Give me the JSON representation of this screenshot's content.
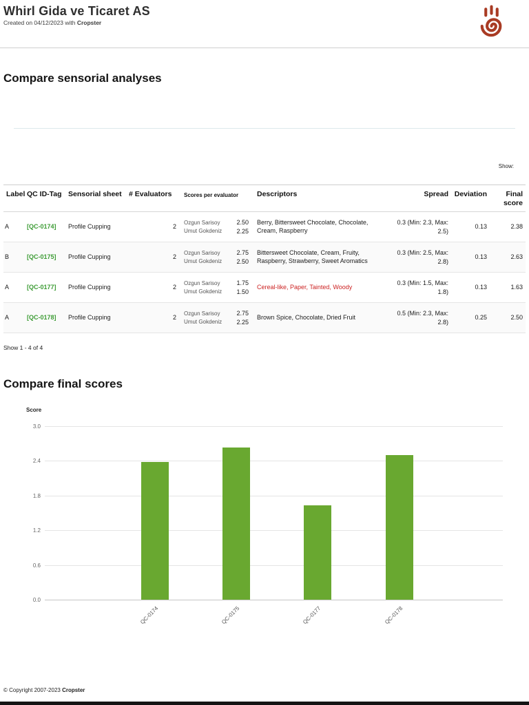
{
  "header": {
    "title": "Whirl Gida ve Ticaret AS",
    "created_prefix": "Created on 04/12/2023 with ",
    "created_brand": "Cropster",
    "logo_icon": "cropster-hand-spiral-logo",
    "logo_color": "#a93b24"
  },
  "sections": {
    "compare_analyses_title": "Compare sensorial analyses",
    "compare_scores_title": "Compare final scores",
    "show_label": "Show:"
  },
  "table": {
    "headers": {
      "label": "Label",
      "qc_tag": "QC ID-Tag",
      "sheet": "Sensorial sheet",
      "evaluators": "# Evaluators",
      "scores": "Scores per evaluator",
      "descriptors": "Descriptors",
      "spread": "Spread",
      "deviation": "Deviation",
      "final": "Final score"
    },
    "rows": [
      {
        "label": "A",
        "qc_tag": "[QC-0174]",
        "sheet": "Profile Cupping",
        "evaluators_count": "2",
        "evaluators": [
          "Ozgun Sarisoy",
          "Umut Gokdeniz"
        ],
        "scores": [
          "2.50",
          "2.25"
        ],
        "descriptors": "Berry, Bittersweet Chocolate, Chocolate, Cream, Raspberry",
        "spread": "0.3 (Min: 2.3, Max: 2.5)",
        "deviation": "0.13",
        "final": "2.38"
      },
      {
        "label": "B",
        "qc_tag": "[QC-0175]",
        "sheet": "Profile Cupping",
        "evaluators_count": "2",
        "evaluators": [
          "Ozgun Sarisoy",
          "Umut Gokdeniz"
        ],
        "scores": [
          "2.75",
          "2.50"
        ],
        "descriptors": "Bittersweet Chocolate, Cream, Fruity, Raspberry, Strawberry, Sweet Aromatics",
        "spread": "0.3 (Min: 2.5, Max: 2.8)",
        "deviation": "0.13",
        "final": "2.63"
      },
      {
        "label": "A",
        "qc_tag": "[QC-0177]",
        "sheet": "Profile Cupping",
        "evaluators_count": "2",
        "evaluators": [
          "Ozgun Sarisoy",
          "Umut Gokdeniz"
        ],
        "scores": [
          "1.75",
          "1.50"
        ],
        "descriptors": "Cereal-like, Paper, Tainted, Woody",
        "descriptors_color": "#cc2222",
        "spread": "0.3 (Min: 1.5, Max: 1.8)",
        "deviation": "0.13",
        "final": "1.63"
      },
      {
        "label": "A",
        "qc_tag": "[QC-0178]",
        "sheet": "Profile Cupping",
        "evaluators_count": "2",
        "evaluators": [
          "Ozgun Sarisoy",
          "Umut Gokdeniz"
        ],
        "scores": [
          "2.75",
          "2.25"
        ],
        "descriptors": "Brown Spice, Chocolate, Dried Fruit",
        "spread": "0.5 (Min: 2.3, Max: 2.8)",
        "deviation": "0.25",
        "final": "2.50"
      }
    ]
  },
  "pagination": "Show 1 - 4 of 4",
  "chart_data": {
    "type": "bar",
    "title": "Compare final scores",
    "ylabel": "Score",
    "xlabel": "",
    "categories": [
      "QC-0174",
      "QC-0175",
      "QC-0177",
      "QC-0178"
    ],
    "values": [
      2.38,
      2.63,
      1.63,
      2.5
    ],
    "ylim": [
      0,
      3.0
    ],
    "yticks": [
      "0.0",
      "0.6",
      "1.2",
      "1.8",
      "2.4",
      "3.0"
    ],
    "grid": true,
    "legend": false,
    "bar_color": "#69a830"
  },
  "footer": {
    "copyright_prefix": "© Copyright 2007-2023 ",
    "brand": "Cropster"
  },
  "colors": {
    "qc_link_green": "#3d9c35",
    "bar_green": "#69a830",
    "negative_descriptor_red": "#cc2222",
    "logo_red": "#a93b24"
  }
}
